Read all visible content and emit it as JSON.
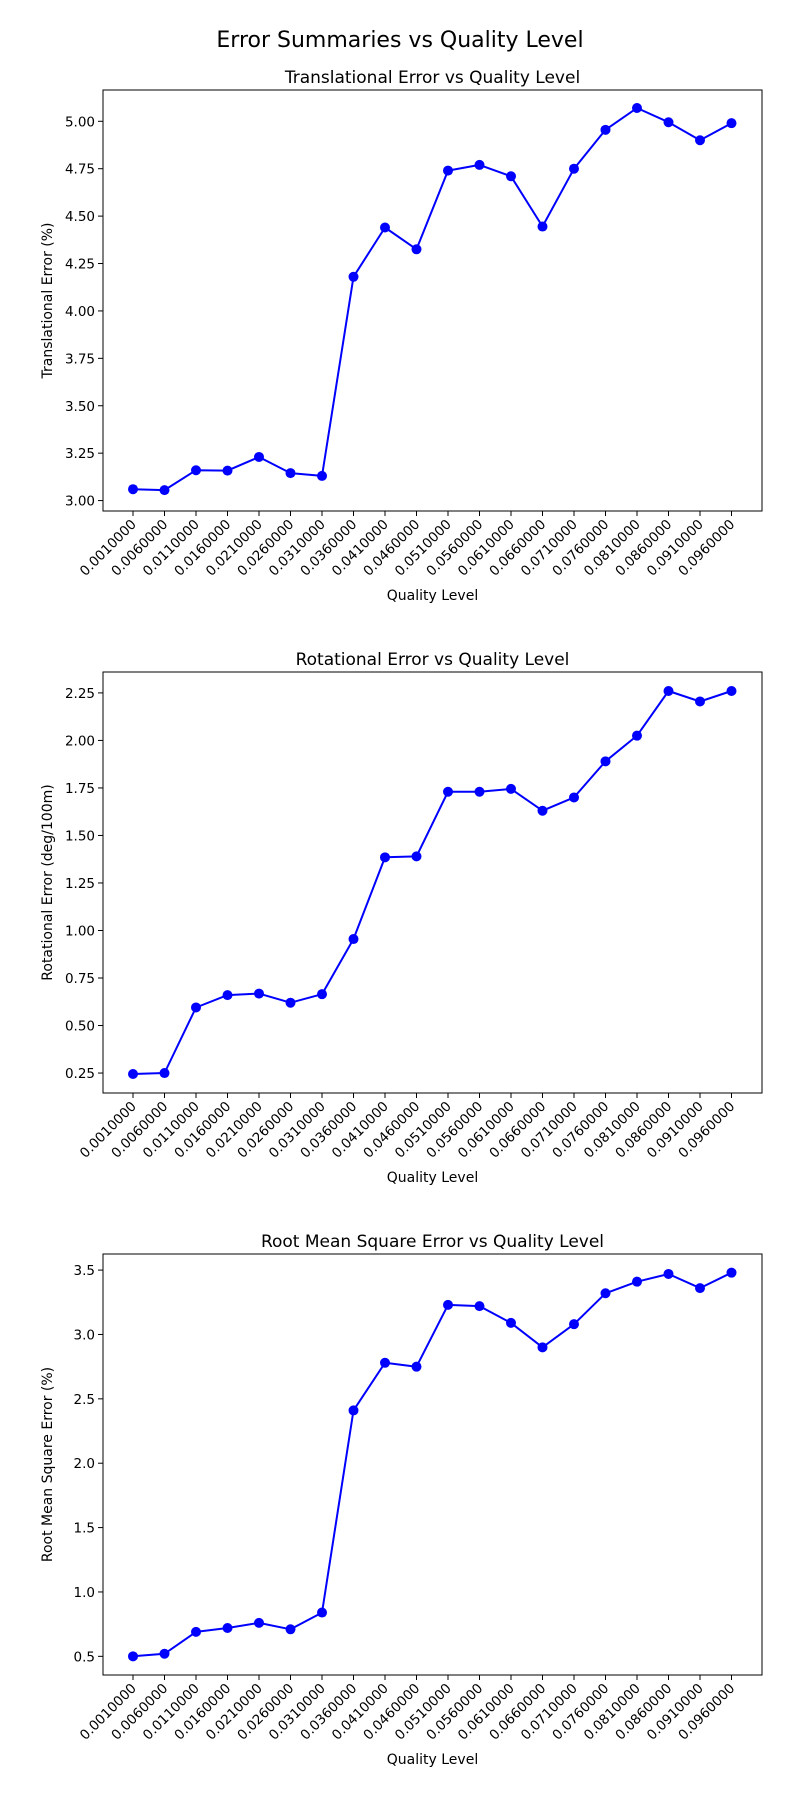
{
  "figure": {
    "suptitle": "Error Summaries vs Quality Level"
  },
  "chart_data": [
    {
      "type": "line",
      "title": "Translational Error vs Quality Level",
      "xlabel": "Quality Level",
      "ylabel": "Translational Error (%)",
      "categories": [
        "0.0010000",
        "0.0060000",
        "0.0110000",
        "0.0160000",
        "0.0210000",
        "0.0260000",
        "0.0310000",
        "0.0360000",
        "0.0410000",
        "0.0460000",
        "0.0510000",
        "0.0560000",
        "0.0610000",
        "0.0660000",
        "0.0710000",
        "0.0760000",
        "0.0810000",
        "0.0860000",
        "0.0910000",
        "0.0960000"
      ],
      "values": [
        3.06,
        3.055,
        3.16,
        3.158,
        3.23,
        3.145,
        3.13,
        4.18,
        4.44,
        4.325,
        4.74,
        4.77,
        4.71,
        4.445,
        4.75,
        4.955,
        5.07,
        4.995,
        4.9,
        4.99
      ],
      "yticks": [
        "3.00",
        "3.25",
        "3.50",
        "3.75",
        "4.00",
        "4.25",
        "4.50",
        "4.75",
        "5.00"
      ],
      "ylim": [
        2.945,
        5.165
      ],
      "color": "#0000ff",
      "marker": "circle",
      "grid": false,
      "legend": "none"
    },
    {
      "type": "line",
      "title": "Rotational Error vs Quality Level",
      "xlabel": "Quality Level",
      "ylabel": "Rotational Error (deg/100m)",
      "categories": [
        "0.0010000",
        "0.0060000",
        "0.0110000",
        "0.0160000",
        "0.0210000",
        "0.0260000",
        "0.0310000",
        "0.0360000",
        "0.0410000",
        "0.0460000",
        "0.0510000",
        "0.0560000",
        "0.0610000",
        "0.0660000",
        "0.0710000",
        "0.0760000",
        "0.0810000",
        "0.0860000",
        "0.0910000",
        "0.0960000"
      ],
      "values": [
        0.245,
        0.25,
        0.595,
        0.66,
        0.668,
        0.62,
        0.665,
        0.955,
        1.385,
        1.39,
        1.73,
        1.73,
        1.745,
        1.63,
        1.7,
        1.89,
        2.025,
        2.26,
        2.205,
        2.26
      ],
      "yticks": [
        "0.25",
        "0.50",
        "0.75",
        "1.00",
        "1.25",
        "1.50",
        "1.75",
        "2.00",
        "2.25"
      ],
      "ylim": [
        0.145,
        2.36
      ],
      "color": "#0000ff",
      "marker": "circle",
      "grid": false,
      "legend": "none"
    },
    {
      "type": "line",
      "title": "Root Mean Square Error vs Quality Level",
      "xlabel": "Quality Level",
      "ylabel": "Root Mean Square Error (%)",
      "categories": [
        "0.0010000",
        "0.0060000",
        "0.0110000",
        "0.0160000",
        "0.0210000",
        "0.0260000",
        "0.0310000",
        "0.0360000",
        "0.0410000",
        "0.0460000",
        "0.0510000",
        "0.0560000",
        "0.0610000",
        "0.0660000",
        "0.0710000",
        "0.0760000",
        "0.0810000",
        "0.0860000",
        "0.0910000",
        "0.0960000"
      ],
      "values": [
        0.5,
        0.52,
        0.69,
        0.72,
        0.76,
        0.71,
        0.84,
        2.41,
        2.78,
        2.75,
        3.23,
        3.22,
        3.09,
        2.9,
        3.08,
        3.32,
        3.41,
        3.47,
        3.36,
        3.48
      ],
      "yticks": [
        "0.5",
        "1.0",
        "1.5",
        "2.0",
        "2.5",
        "3.0",
        "3.5"
      ],
      "ylim": [
        0.355,
        3.625
      ],
      "color": "#0000ff",
      "marker": "circle",
      "grid": false,
      "legend": "none"
    }
  ]
}
